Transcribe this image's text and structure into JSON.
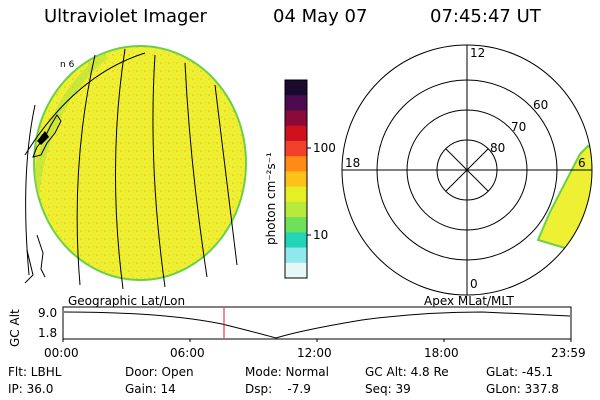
{
  "header": {
    "title": "Ultraviolet Imager",
    "date": "04 May 07",
    "time": "07:45:47 UT"
  },
  "colorbar": {
    "unit_label": "photon cm⁻²s⁻¹",
    "tick_100": "100",
    "tick_10": "10",
    "colors": [
      "#1a0a2e",
      "#4b0b4e",
      "#8a0a3a",
      "#d0101e",
      "#f0402a",
      "#ff8a14",
      "#ffc21a",
      "#e6ef23",
      "#b7ea3a",
      "#6fe05a",
      "#22d4b8",
      "#8fe8ec",
      "#e6f7f7"
    ]
  },
  "polar": {
    "label_top": "12",
    "label_left": "18",
    "label_right": "6",
    "label_bottom": "0",
    "ring_60": "60",
    "ring_70": "70",
    "ring_80": "80"
  },
  "timeline": {
    "left_label": "Geographic Lat/Lon",
    "right_label": "Apex MLat/MLT",
    "y_axis_label": "GC Alt",
    "y_top": "9.0",
    "y_bottom": "1.8",
    "ticks": [
      "00:00",
      "06:00",
      "12:00",
      "18:00",
      "23:59"
    ],
    "marker_color": "#d02020"
  },
  "info": {
    "flt": "Flt: LBHL",
    "door": "Door: Open",
    "mode": "Mode: Normal",
    "gc_alt": "GC Alt: 4.8 Re",
    "glat": "GLat: -45.1",
    "ip": "IP: 36.0",
    "gain": "Gain: 14",
    "dsp": "Dsp:    -7.9",
    "seq": "Seq: 39",
    "glon": "GLon: 337.8"
  }
}
